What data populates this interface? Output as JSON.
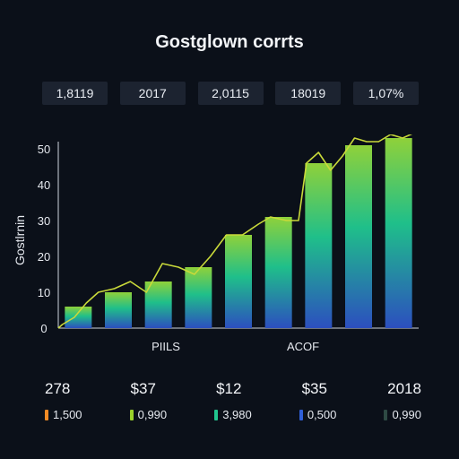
{
  "chart_data": {
    "type": "area",
    "title": "Gostglown corrts",
    "ylabel": "Gostlrnin",
    "ylim": [
      0,
      50
    ],
    "yticks": [
      0,
      10,
      20,
      30,
      40,
      50
    ],
    "xlabels": [
      "PIILS",
      "ACOF"
    ],
    "bars": [
      6,
      10,
      13,
      17,
      26,
      31,
      46,
      51,
      53
    ],
    "line": {
      "x": [
        0,
        0.1,
        0.4,
        0.7,
        1,
        1.4,
        1.8,
        2.2,
        2.6,
        3,
        3.4,
        3.8,
        4.2,
        4.6,
        5,
        5.3,
        5.7,
        6,
        6.2,
        6.5,
        6.8,
        7.1,
        7.4,
        7.7,
        8,
        8.3,
        8.6,
        9
      ],
      "y": [
        0,
        1,
        3,
        7,
        10,
        11,
        13,
        10,
        18,
        17,
        15,
        20,
        26,
        26,
        29,
        31,
        30,
        30,
        46,
        49,
        44,
        48,
        53,
        52,
        52,
        54,
        53,
        55
      ]
    },
    "stats": [
      "1,8119",
      "2017",
      "2,0115",
      "18019",
      "1,07%"
    ],
    "bottom_values": [
      "278",
      "$37",
      "$12",
      "$35",
      "2018"
    ],
    "legend": [
      {
        "label": "1,500",
        "color": "#f08a24"
      },
      {
        "label": "0,990",
        "color": "#9bd12a"
      },
      {
        "label": "3,980",
        "color": "#21c58e"
      },
      {
        "label": "0,500",
        "color": "#2f5fd8"
      },
      {
        "label": "0,990",
        "color": "#2e4a44"
      }
    ],
    "colors": {
      "bar_top": "#8fd13a",
      "bar_mid": "#1fbf8a",
      "bar_bottom": "#2c4fbf",
      "line": "#c9d93a"
    },
    "grid": false,
    "legend_position": "bottom"
  }
}
